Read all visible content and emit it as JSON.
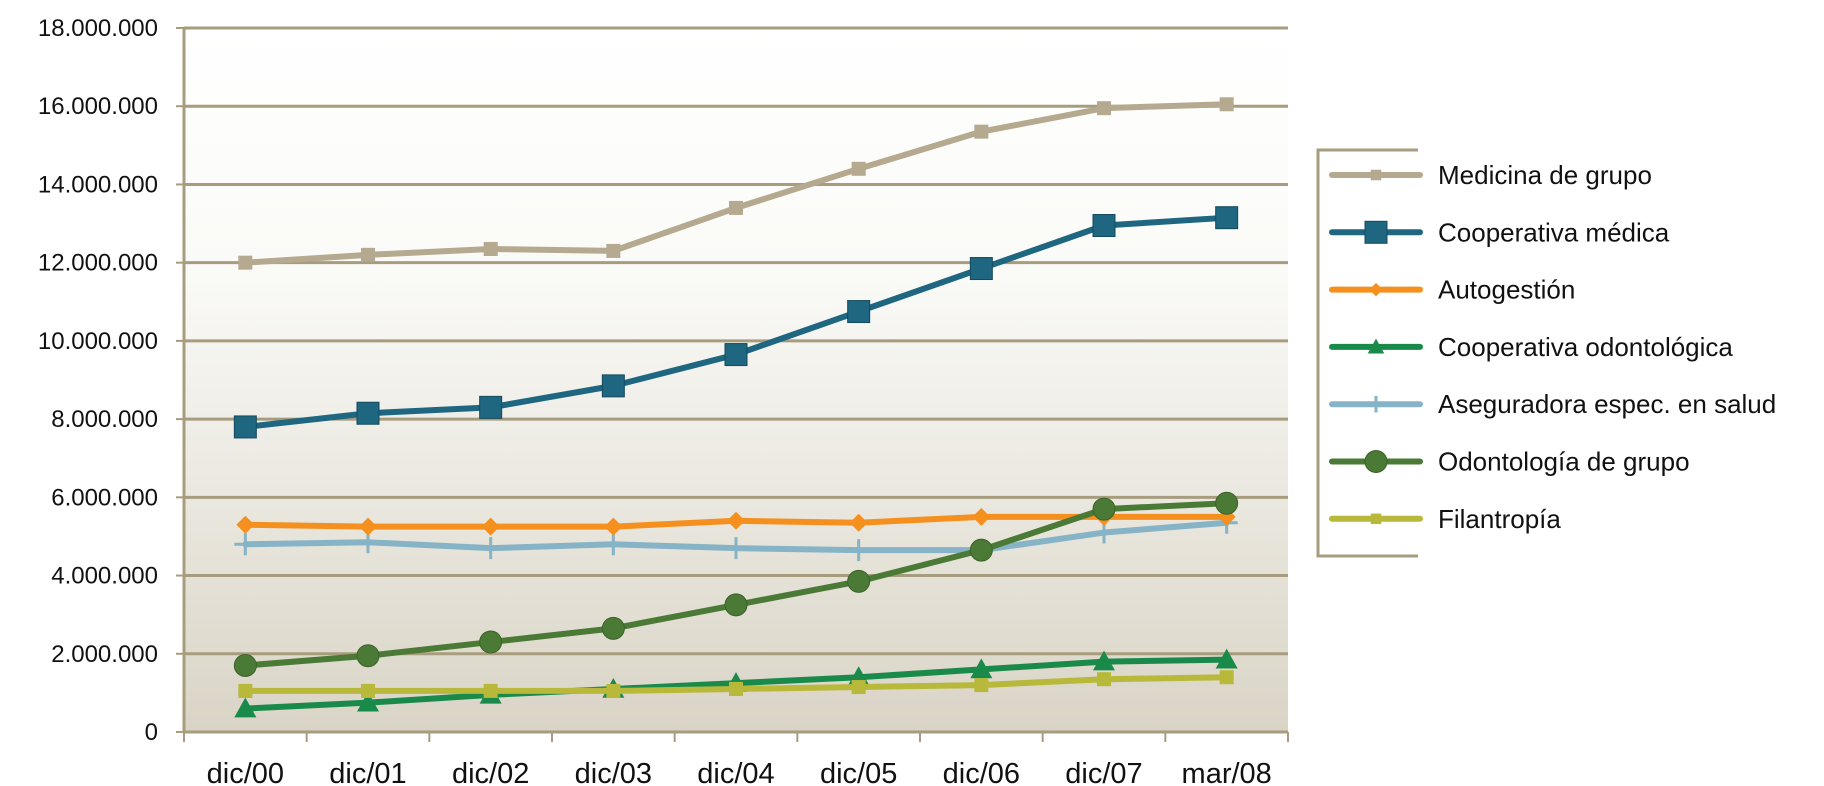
{
  "chart_data": {
    "type": "line",
    "title": "",
    "xlabel": "",
    "ylabel": "",
    "categories": [
      "dic/00",
      "dic/01",
      "dic/02",
      "dic/03",
      "dic/04",
      "dic/05",
      "dic/06",
      "dic/07",
      "mar/08"
    ],
    "ylim": [
      0,
      18000000
    ],
    "yticks": [
      0,
      2000000,
      4000000,
      6000000,
      8000000,
      10000000,
      12000000,
      14000000,
      16000000,
      18000000
    ],
    "ytick_labels": [
      "0",
      "2.000.000",
      "4.000.000",
      "6.000.000",
      "8.000.000",
      "10.000.000",
      "12.000.000",
      "14.000.000",
      "16.000.000",
      "18.000.000"
    ],
    "grid": true,
    "legend_position": "right",
    "series": [
      {
        "name": "Medicina de grupo",
        "color": "#b5a98f",
        "marker": "small-square",
        "values": [
          12000000,
          12200000,
          12350000,
          12300000,
          13400000,
          14400000,
          15350000,
          15950000,
          16050000
        ]
      },
      {
        "name": "Cooperativa médica",
        "color": "#1f6680",
        "marker": "square",
        "values": [
          7800000,
          8150000,
          8300000,
          8850000,
          9650000,
          10750000,
          11850000,
          12950000,
          13150000
        ]
      },
      {
        "name": "Autogestión",
        "color": "#f5901e",
        "marker": "diamond",
        "values": [
          5300000,
          5250000,
          5250000,
          5250000,
          5400000,
          5350000,
          5500000,
          5500000,
          5500000
        ]
      },
      {
        "name": "Cooperativa odontológica",
        "color": "#1a8a4a",
        "marker": "triangle",
        "values": [
          600000,
          750000,
          950000,
          1100000,
          1250000,
          1400000,
          1600000,
          1800000,
          1850000
        ]
      },
      {
        "name": "Aseguradora espec. en salud",
        "color": "#86b3c6",
        "marker": "plus",
        "values": [
          4800000,
          4850000,
          4700000,
          4800000,
          4700000,
          4650000,
          4650000,
          5100000,
          5350000
        ]
      },
      {
        "name": "Odontología de grupo",
        "color": "#4a7a35",
        "marker": "circle",
        "values": [
          1700000,
          1950000,
          2300000,
          2650000,
          3250000,
          3850000,
          4650000,
          5700000,
          5850000
        ]
      },
      {
        "name": "Filantropía",
        "color": "#b8b83a",
        "marker": "small-square",
        "values": [
          1050000,
          1050000,
          1050000,
          1050000,
          1100000,
          1150000,
          1200000,
          1350000,
          1400000
        ]
      }
    ]
  }
}
